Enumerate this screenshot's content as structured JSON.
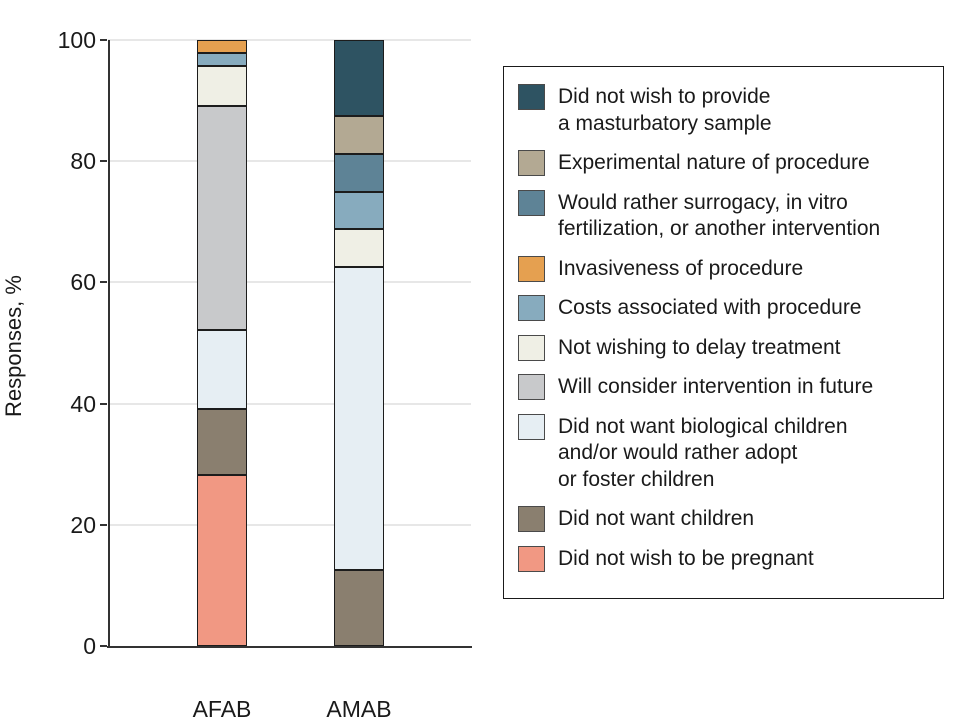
{
  "colors": {
    "grid": "#E7E7E7",
    "axis": "#333333",
    "text": "#1A1A1A",
    "segment_border": "#1C1C1C",
    "legend_border": "#1A1A1A"
  },
  "chart_data": {
    "type": "bar",
    "subtype": "stacked-vertical",
    "title": "",
    "xlabel": "",
    "ylabel": "Responses, %",
    "ylim": [
      0,
      100
    ],
    "yticks": [
      0,
      20,
      40,
      60,
      80,
      100
    ],
    "grid": "horizontal",
    "legend_position": "right",
    "categories": [
      "AFAB",
      "AMAB"
    ],
    "series": [
      {
        "name": "Did not wish to be pregnant",
        "color": "#F19883",
        "values": [
          28.26,
          0
        ]
      },
      {
        "name": "Did not want children",
        "color": "#8A7F6F",
        "values": [
          10.87,
          12.5
        ]
      },
      {
        "name": "Did not want biological children and/or would rather adopt or foster children",
        "color": "#E6EEF3",
        "values": [
          13.04,
          50
        ]
      },
      {
        "name": "Will consider intervention in future",
        "color": "#C8C9CB",
        "values": [
          36.96,
          0
        ]
      },
      {
        "name": "Not wishing to delay treatment",
        "color": "#EFEFE5",
        "values": [
          6.52,
          6.25
        ]
      },
      {
        "name": "Costs associated with procedure",
        "color": "#87ABBE",
        "values": [
          2.17,
          6.25
        ]
      },
      {
        "name": "Invasiveness of procedure",
        "color": "#E5A050",
        "values": [
          2.17,
          0
        ]
      },
      {
        "name": "Would rather surrogacy, in vitro fertilization, or another intervention",
        "color": "#5E8396",
        "values": [
          0,
          6.25
        ]
      },
      {
        "name": "Experimental nature of procedure",
        "color": "#B3A993",
        "values": [
          0,
          6.25
        ]
      },
      {
        "name": "Did not wish to provide a masturbatory sample",
        "color": "#2E5362",
        "values": [
          0,
          12.5
        ]
      }
    ]
  },
  "legend": {
    "items": [
      {
        "color": "#2E5362",
        "lines": [
          "Did not wish to provide",
          "a masturbatory sample"
        ]
      },
      {
        "color": "#B3A993",
        "lines": [
          "Experimental nature of procedure"
        ]
      },
      {
        "color": "#5E8396",
        "lines": [
          "Would rather surrogacy, in vitro",
          "fertilization, or another intervention"
        ]
      },
      {
        "color": "#E5A050",
        "lines": [
          "Invasiveness of procedure"
        ]
      },
      {
        "color": "#87ABBE",
        "lines": [
          "Costs associated with procedure"
        ]
      },
      {
        "color": "#EFEFE5",
        "lines": [
          "Not wishing to delay treatment"
        ]
      },
      {
        "color": "#C8C9CB",
        "lines": [
          "Will consider intervention in future"
        ]
      },
      {
        "color": "#E6EEF3",
        "lines": [
          "Did not want biological children",
          "and/or would rather adopt",
          "or foster children"
        ]
      },
      {
        "color": "#8A7F6F",
        "lines": [
          "Did not want children"
        ]
      },
      {
        "color": "#F19883",
        "lines": [
          "Did not wish to be pregnant"
        ]
      }
    ]
  }
}
